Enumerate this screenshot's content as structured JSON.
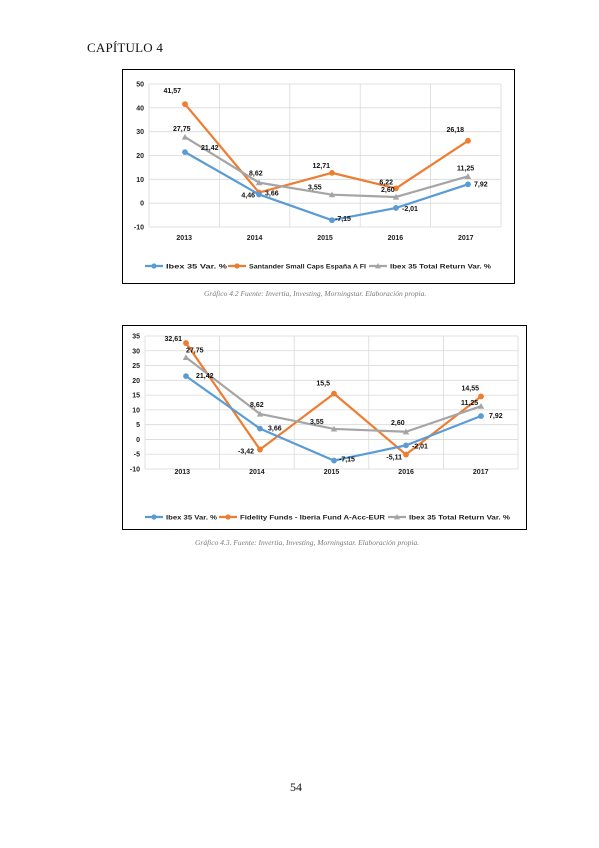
{
  "header": {
    "chapter": "CAPÍTULO 4"
  },
  "captions": [
    "Gráfico 4.2 Fuente: Invertia, Investing, Morningstar. Elaboración propia.",
    "Gráfico 4.3.  Fuente: Invertia, Investing, Morningstar. Elaboración propia."
  ],
  "page_number": "54",
  "chart_data": [
    {
      "type": "line",
      "x": [
        "2013",
        "2014",
        "2015",
        "2016",
        "2017"
      ],
      "ylim": [
        -10,
        50
      ],
      "yticks": [
        -10,
        0,
        10,
        20,
        30,
        40,
        50
      ],
      "grid": true,
      "legend": "bottom",
      "series": [
        {
          "name": "Ibex 35 Var. %",
          "color": "#5b9bd5",
          "values": [
            21.42,
            3.66,
            -7.15,
            -2.01,
            7.92
          ],
          "labels": [
            "21,42",
            "3,66",
            "-7,15",
            "-2,01",
            "7,92"
          ]
        },
        {
          "name": "Santander Small Caps España A FI",
          "color": "#ed7d31",
          "values": [
            41.57,
            4.46,
            12.71,
            6.22,
            26.18
          ],
          "labels": [
            "41,57",
            "4,46",
            "12,71",
            "6,22",
            "26,18"
          ]
        },
        {
          "name": "Ibex 35 Total Return Var. %",
          "color": "#a5a5a5",
          "values": [
            27.75,
            8.62,
            3.55,
            2.6,
            11.25
          ],
          "labels": [
            "27,75",
            "8,62",
            "3,55",
            "2,60",
            "11,25"
          ]
        }
      ]
    },
    {
      "type": "line",
      "x": [
        "2013",
        "2014",
        "2015",
        "2016",
        "2017"
      ],
      "ylim": [
        -10,
        35
      ],
      "yticks": [
        -10,
        -5,
        0,
        5,
        10,
        15,
        20,
        25,
        30,
        35
      ],
      "grid": true,
      "legend": "bottom",
      "series": [
        {
          "name": "Ibex 35 Var. %",
          "color": "#5b9bd5",
          "values": [
            21.42,
            3.66,
            -7.15,
            -2.01,
            7.92
          ],
          "labels": [
            "21,42",
            "3,66",
            "-7,15",
            "-2,01",
            "7,92"
          ]
        },
        {
          "name": "Fidelity Funds - Iberia Fund A-Acc-EUR",
          "color": "#ed7d31",
          "values": [
            32.61,
            -3.42,
            15.5,
            -5.11,
            14.55
          ],
          "labels": [
            "32,61",
            "-3,42",
            "15,5",
            "-5,11",
            "14,55"
          ]
        },
        {
          "name": "Ibex 35 Total Return Var. %",
          "color": "#a5a5a5",
          "values": [
            27.75,
            8.62,
            3.55,
            2.6,
            11.25
          ],
          "labels": [
            "27,75",
            "8,62",
            "3,55",
            "2,60",
            "11,25"
          ]
        }
      ]
    }
  ]
}
